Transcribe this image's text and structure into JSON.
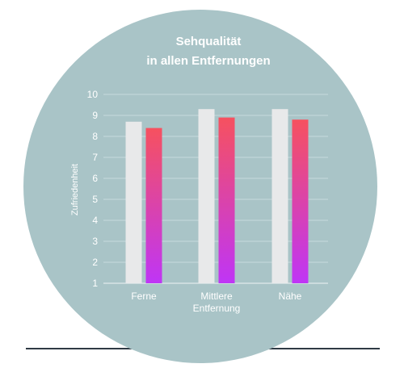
{
  "colors": {
    "background": "#ffffff",
    "circle": "#a9c4c7",
    "text": "#ffffff",
    "gridline": "#c8dadc",
    "axis_line": "#eef4f5",
    "bar_light": "#e8e9ea",
    "bar_gradient_top": "#f6515f",
    "bar_gradient_bottom": "#bf35f6",
    "baseline": "#2f3a44"
  },
  "chart_data": {
    "type": "bar",
    "title_lines": [
      "Sehqualität",
      "in allen Entfernungen"
    ],
    "xlabel": "",
    "ylabel": "Zufriedenheit",
    "ylim": [
      1,
      10
    ],
    "yticks": [
      "1",
      "2",
      "3",
      "4",
      "5",
      "6",
      "7",
      "8",
      "9",
      "10"
    ],
    "grid": true,
    "categories": [
      {
        "lines": [
          "Ferne"
        ]
      },
      {
        "lines": [
          "Mittlere",
          "Entfernung"
        ]
      },
      {
        "lines": [
          "Nähe"
        ]
      }
    ],
    "series": [
      {
        "values": [
          8.7,
          9.3,
          9.3
        ]
      },
      {
        "values": [
          8.4,
          8.9,
          8.8
        ]
      }
    ]
  }
}
